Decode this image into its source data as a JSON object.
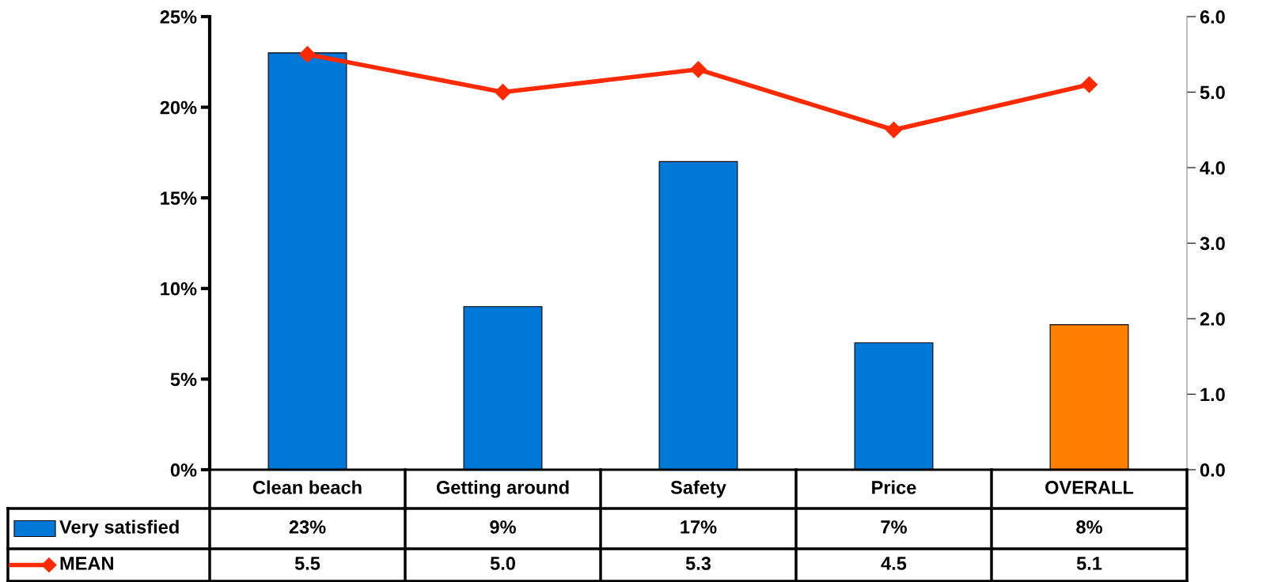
{
  "chart_data": {
    "type": "bar",
    "categories": [
      "Clean beach",
      "Getting around",
      "Safety",
      "Price",
      "OVERALL"
    ],
    "series": [
      {
        "name": "Very satisfied",
        "color": "#0078d7",
        "colors": [
          "#0078d7",
          "#0078d7",
          "#0078d7",
          "#0078d7",
          "#ff8000"
        ],
        "values": [
          23,
          9,
          17,
          7,
          8
        ],
        "value_labels": [
          "23%",
          "9%",
          "17%",
          "7%",
          "8%"
        ]
      },
      {
        "name": "MEAN",
        "type": "line",
        "axis": "y2",
        "color": "#ff2a00",
        "marker": "diamond",
        "line_style": "solid",
        "values": [
          5.5,
          5.0,
          5.3,
          4.5,
          5.1
        ],
        "value_labels": [
          "5.5",
          "5.0",
          "5.3",
          "4.5",
          "5.1"
        ]
      }
    ],
    "ylim": [
      0,
      25
    ],
    "yticks": [
      {
        "value": 0,
        "label": "0%"
      },
      {
        "value": 5,
        "label": "5%"
      },
      {
        "value": 10,
        "label": "10%"
      },
      {
        "value": 15,
        "label": "15%"
      },
      {
        "value": 20,
        "label": "20%"
      },
      {
        "value": 25,
        "label": "25%"
      }
    ],
    "y2lim": [
      0,
      6
    ],
    "y2ticks": [
      {
        "value": 0,
        "label": "0.0"
      },
      {
        "value": 1,
        "label": "1.0"
      },
      {
        "value": 2,
        "label": "2.0"
      },
      {
        "value": 3,
        "label": "3.0"
      },
      {
        "value": 4,
        "label": "4.0"
      },
      {
        "value": 5,
        "label": "5.0"
      },
      {
        "value": 6,
        "label": "6.0"
      }
    ],
    "grid": false,
    "legend": "bottom"
  }
}
